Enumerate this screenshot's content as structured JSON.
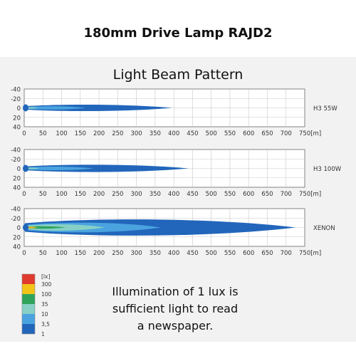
{
  "header": {
    "title": "180mm Drive Lamp RAJD2"
  },
  "chart_title": "Light Beam Pattern",
  "note": {
    "lines": [
      "Illumination of 1 lux is",
      "sufficient light to read",
      "a newspaper."
    ]
  },
  "legend": {
    "unit": "[lx]",
    "levels": [
      {
        "label": "300",
        "color": "#e03a2e"
      },
      {
        "label": "100",
        "color": "#f2c418"
      },
      {
        "label": "35",
        "color": "#2fa35a"
      },
      {
        "label": "10",
        "color": "#86d0c6"
      },
      {
        "label": "3,5",
        "color": "#4aa3df"
      },
      {
        "label": "1",
        "color": "#2266bb"
      }
    ]
  },
  "chart_data": [
    {
      "type": "area",
      "series_label": "H3 55W",
      "x_ticks": [
        0,
        50,
        100,
        150,
        200,
        250,
        300,
        350,
        400,
        450,
        500,
        550,
        600,
        650,
        700,
        750
      ],
      "x_unit_label": "750[m]",
      "y_ticks": [
        -40,
        -20,
        0,
        20,
        40
      ],
      "xlim": [
        0,
        750
      ],
      "ylim": [
        -40,
        40
      ],
      "grid": true,
      "contours_lux": [
        {
          "lux": 1,
          "reach_m": 395,
          "half_width_m": 8
        },
        {
          "lux": 3.5,
          "reach_m": 165,
          "half_width_m": 4
        },
        {
          "lux": 10,
          "reach_m": 35,
          "half_width_m": 2
        }
      ]
    },
    {
      "type": "area",
      "series_label": "H3 100W",
      "x_ticks": [
        0,
        50,
        100,
        150,
        200,
        250,
        300,
        350,
        400,
        450,
        500,
        550,
        600,
        650,
        700,
        750
      ],
      "x_unit_label": "750[m]",
      "y_ticks": [
        -40,
        -20,
        0,
        20,
        40
      ],
      "xlim": [
        0,
        750
      ],
      "ylim": [
        -40,
        40
      ],
      "grid": true,
      "contours_lux": [
        {
          "lux": 1,
          "reach_m": 440,
          "half_width_m": 9
        },
        {
          "lux": 3.5,
          "reach_m": 185,
          "half_width_m": 4.5
        },
        {
          "lux": 10,
          "reach_m": 40,
          "half_width_m": 2
        }
      ]
    },
    {
      "type": "area",
      "series_label": "XENON",
      "x_ticks": [
        0,
        50,
        100,
        150,
        200,
        250,
        300,
        350,
        400,
        450,
        500,
        550,
        600,
        650,
        700,
        750
      ],
      "x_unit_label": "750[m]",
      "y_ticks": [
        -40,
        -20,
        0,
        20,
        40
      ],
      "xlim": [
        0,
        750
      ],
      "ylim": [
        -40,
        40
      ],
      "grid": true,
      "contours_lux": [
        {
          "lux": 1,
          "reach_m": 725,
          "half_width_m": 20
        },
        {
          "lux": 3.5,
          "reach_m": 365,
          "half_width_m": 12
        },
        {
          "lux": 10,
          "reach_m": 215,
          "half_width_m": 8
        },
        {
          "lux": 35,
          "reach_m": 110,
          "half_width_m": 3
        },
        {
          "lux": 100,
          "reach_m": 35,
          "half_width_m": 2
        },
        {
          "lux": 300,
          "reach_m": 15,
          "half_width_m": 1
        }
      ]
    }
  ]
}
